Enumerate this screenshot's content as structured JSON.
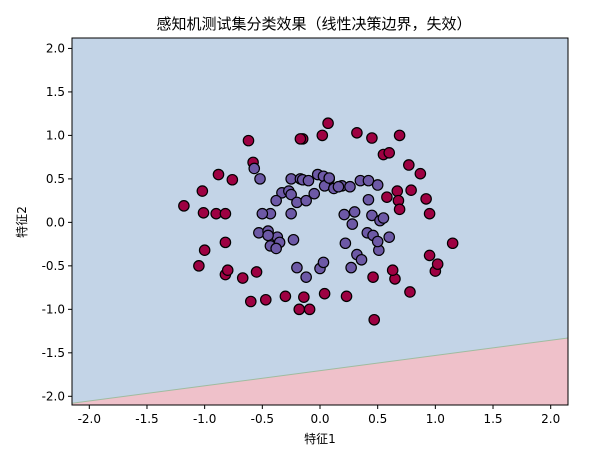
{
  "chart_data": {
    "type": "scatter",
    "title": "感知机测试集分类效果（线性决策边界，失效）",
    "xlabel": "特征1",
    "ylabel": "特征2",
    "xlim": [
      -2.15,
      2.15
    ],
    "ylim": [
      -2.1,
      2.12
    ],
    "xticks": [
      -2.0,
      -1.5,
      -1.0,
      -0.5,
      0.0,
      0.5,
      1.0,
      1.5,
      2.0
    ],
    "yticks": [
      -2.0,
      -1.5,
      -1.0,
      -0.5,
      0.0,
      0.5,
      1.0,
      1.5,
      2.0
    ],
    "grid": false,
    "decision_boundary": {
      "points": [
        [
          -2.15,
          -2.08
        ],
        [
          2.15,
          -1.33
        ]
      ],
      "region_above_color": "#c3d4e7",
      "region_below_color": "#efc1ca",
      "line_color": "#9fbca0"
    },
    "series": [
      {
        "color": "#9e0142",
        "x": [
          -0.62,
          -0.15,
          -0.17,
          0.02,
          0.07,
          0.32,
          0.45,
          0.69,
          0.55,
          0.6,
          -0.58,
          -0.88,
          -0.76,
          -1.02,
          -1.18,
          -1.01,
          -0.9,
          -0.82,
          -1.0,
          -0.82,
          -0.82,
          -0.67,
          -0.47,
          -0.6,
          -0.3,
          -0.18,
          -0.09,
          -0.14,
          0.04,
          0.23,
          0.47,
          0.46,
          0.65,
          0.63,
          0.78,
          1.0,
          1.02,
          0.95,
          1.15,
          0.95,
          0.87,
          0.77,
          0.67,
          0.79,
          0.58,
          0.68,
          0.69,
          0.92,
          -1.05,
          -0.8,
          -0.55
        ],
        "y": [
          0.94,
          0.96,
          0.96,
          1.0,
          1.14,
          1.03,
          0.97,
          1.0,
          0.78,
          0.8,
          0.69,
          0.55,
          0.49,
          0.36,
          0.19,
          0.11,
          0.1,
          0.1,
          -0.32,
          -0.23,
          -0.6,
          -0.64,
          -0.89,
          -0.91,
          -0.85,
          -1.0,
          -1.0,
          -0.86,
          -0.82,
          -0.85,
          -1.12,
          -0.63,
          -0.65,
          -0.55,
          -0.8,
          -0.56,
          -0.48,
          -0.38,
          -0.24,
          0.1,
          0.56,
          0.66,
          0.36,
          0.37,
          0.29,
          0.25,
          0.15,
          0.27,
          -0.5,
          -0.55,
          -0.57
        ]
      },
      {
        "color": "#6d59a6",
        "x": [
          -0.52,
          -0.57,
          -0.33,
          -0.27,
          -0.25,
          -0.17,
          -0.15,
          -0.1,
          -0.02,
          0.03,
          0.08,
          0.19,
          0.26,
          0.35,
          0.42,
          0.5,
          0.42,
          0.45,
          0.3,
          0.21,
          -0.25,
          -0.38,
          -0.43,
          -0.5,
          -0.53,
          -0.45,
          -0.37,
          -0.43,
          -0.45,
          -0.35,
          -0.38,
          -0.23,
          -0.2,
          -0.25,
          -0.12,
          -0.05,
          0.04,
          0.08,
          0.12,
          0.16,
          0.22,
          0.28,
          0.32,
          0.41,
          0.46,
          0.51,
          0.52,
          0.55,
          0.6,
          0.5,
          0.36,
          0.27,
          -0.2,
          0.0,
          -0.12,
          0.03
        ],
        "y": [
          0.5,
          0.62,
          0.34,
          0.36,
          0.5,
          0.5,
          0.49,
          0.48,
          0.55,
          0.53,
          0.5,
          0.42,
          0.41,
          0.48,
          0.48,
          0.43,
          0.26,
          0.08,
          0.12,
          0.09,
          0.32,
          0.25,
          0.1,
          0.1,
          -0.12,
          -0.1,
          -0.17,
          -0.27,
          -0.15,
          -0.23,
          -0.3,
          -0.2,
          0.23,
          0.1,
          0.25,
          0.33,
          0.42,
          0.51,
          0.39,
          0.41,
          -0.24,
          -0.02,
          -0.37,
          -0.12,
          -0.15,
          -0.32,
          0.02,
          0.05,
          -0.17,
          -0.22,
          -0.43,
          -0.52,
          -0.52,
          -0.53,
          -0.63,
          -0.46
        ]
      }
    ]
  }
}
